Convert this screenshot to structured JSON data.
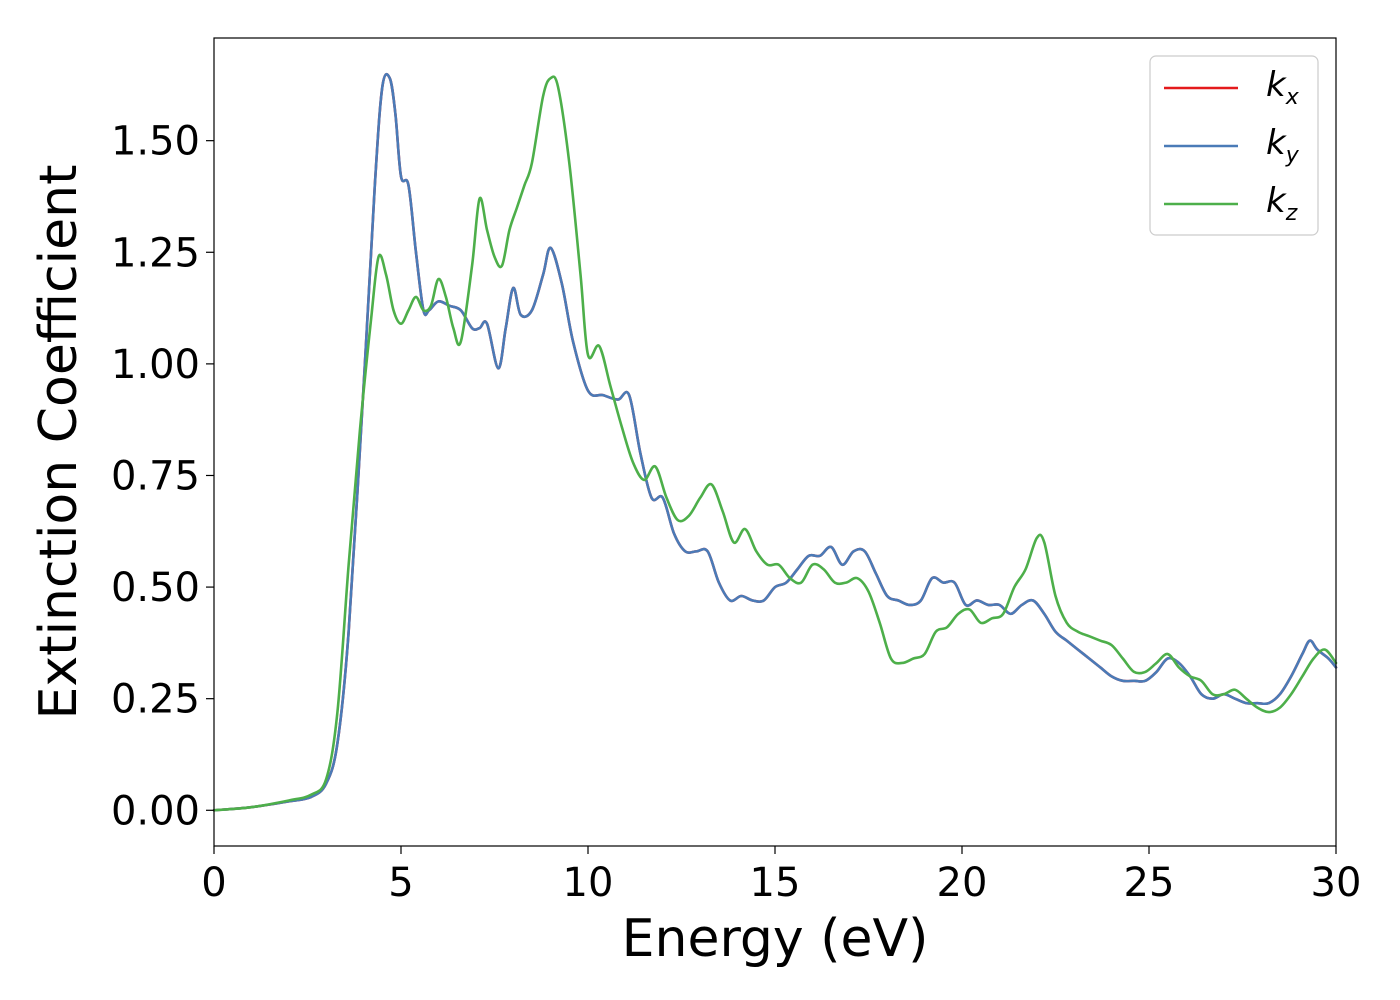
{
  "chart_data": {
    "type": "line",
    "title": "",
    "xlabel": "Energy (eV)",
    "ylabel": "Extinction Coefficient",
    "xlim": [
      0,
      30
    ],
    "ylim": [
      -0.08,
      1.73
    ],
    "xticks": [
      0,
      5,
      10,
      15,
      20,
      25,
      30
    ],
    "xtick_labels": [
      "0",
      "5",
      "10",
      "15",
      "20",
      "25",
      "30"
    ],
    "yticks": [
      0,
      0.25,
      0.5,
      0.75,
      1.0,
      1.25,
      1.5
    ],
    "ytick_labels": [
      "0.00",
      "0.25",
      "0.50",
      "0.75",
      "1.00",
      "1.25",
      "1.50"
    ],
    "grid": false,
    "legend_position": "top-right",
    "series": [
      {
        "name": "k",
        "subscript": "x",
        "color": "#e41a1c",
        "x": [
          0,
          1,
          2,
          2.6,
          3.0,
          3.3,
          3.6,
          4.0,
          4.3,
          4.5,
          4.7,
          4.85,
          5.0,
          5.2,
          5.4,
          5.6,
          5.75,
          6.0,
          6.3,
          6.6,
          6.9,
          7.1,
          7.3,
          7.6,
          7.8,
          8.0,
          8.2,
          8.5,
          8.8,
          9.0,
          9.3,
          9.6,
          10.0,
          10.4,
          10.8,
          11.1,
          11.4,
          11.7,
          12.0,
          12.3,
          12.6,
          12.9,
          13.2,
          13.5,
          13.8,
          14.1,
          14.4,
          14.7,
          15.0,
          15.3,
          15.6,
          15.9,
          16.2,
          16.5,
          16.8,
          17.1,
          17.4,
          17.7,
          18.0,
          18.3,
          18.6,
          18.9,
          19.2,
          19.5,
          19.8,
          20.1,
          20.4,
          20.7,
          21.0,
          21.3,
          21.6,
          21.9,
          22.2,
          22.5,
          22.8,
          23.1,
          23.4,
          23.7,
          24.0,
          24.3,
          24.6,
          24.9,
          25.2,
          25.5,
          25.8,
          26.1,
          26.4,
          26.7,
          27.0,
          27.3,
          27.6,
          27.9,
          28.2,
          28.5,
          28.8,
          29.1,
          29.3,
          29.5,
          29.8,
          30
        ],
        "y": [
          0.0,
          0.007,
          0.02,
          0.03,
          0.06,
          0.15,
          0.4,
          0.95,
          1.4,
          1.62,
          1.64,
          1.56,
          1.42,
          1.4,
          1.25,
          1.12,
          1.12,
          1.14,
          1.13,
          1.12,
          1.08,
          1.08,
          1.09,
          0.99,
          1.08,
          1.17,
          1.11,
          1.12,
          1.2,
          1.26,
          1.18,
          1.05,
          0.94,
          0.93,
          0.92,
          0.93,
          0.8,
          0.7,
          0.7,
          0.62,
          0.58,
          0.58,
          0.58,
          0.51,
          0.47,
          0.48,
          0.47,
          0.47,
          0.5,
          0.51,
          0.54,
          0.57,
          0.57,
          0.59,
          0.55,
          0.58,
          0.58,
          0.53,
          0.48,
          0.47,
          0.46,
          0.47,
          0.52,
          0.51,
          0.51,
          0.46,
          0.47,
          0.46,
          0.46,
          0.44,
          0.46,
          0.47,
          0.44,
          0.4,
          0.38,
          0.36,
          0.34,
          0.32,
          0.3,
          0.29,
          0.29,
          0.29,
          0.31,
          0.34,
          0.33,
          0.3,
          0.26,
          0.25,
          0.26,
          0.25,
          0.24,
          0.24,
          0.24,
          0.26,
          0.3,
          0.35,
          0.38,
          0.36,
          0.34,
          0.32
        ]
      },
      {
        "name": "k",
        "subscript": "y",
        "color": "#4a7bb7",
        "x": [
          0,
          1,
          2,
          2.6,
          3.0,
          3.3,
          3.6,
          4.0,
          4.3,
          4.5,
          4.7,
          4.85,
          5.0,
          5.2,
          5.4,
          5.6,
          5.75,
          6.0,
          6.3,
          6.6,
          6.9,
          7.1,
          7.3,
          7.6,
          7.8,
          8.0,
          8.2,
          8.5,
          8.8,
          9.0,
          9.3,
          9.6,
          10.0,
          10.4,
          10.8,
          11.1,
          11.4,
          11.7,
          12.0,
          12.3,
          12.6,
          12.9,
          13.2,
          13.5,
          13.8,
          14.1,
          14.4,
          14.7,
          15.0,
          15.3,
          15.6,
          15.9,
          16.2,
          16.5,
          16.8,
          17.1,
          17.4,
          17.7,
          18.0,
          18.3,
          18.6,
          18.9,
          19.2,
          19.5,
          19.8,
          20.1,
          20.4,
          20.7,
          21.0,
          21.3,
          21.6,
          21.9,
          22.2,
          22.5,
          22.8,
          23.1,
          23.4,
          23.7,
          24.0,
          24.3,
          24.6,
          24.9,
          25.2,
          25.5,
          25.8,
          26.1,
          26.4,
          26.7,
          27.0,
          27.3,
          27.6,
          27.9,
          28.2,
          28.5,
          28.8,
          29.1,
          29.3,
          29.5,
          29.8,
          30
        ],
        "y": [
          0.0,
          0.007,
          0.02,
          0.03,
          0.06,
          0.15,
          0.4,
          0.95,
          1.4,
          1.62,
          1.64,
          1.56,
          1.42,
          1.4,
          1.25,
          1.12,
          1.12,
          1.14,
          1.13,
          1.12,
          1.08,
          1.08,
          1.09,
          0.99,
          1.08,
          1.17,
          1.11,
          1.12,
          1.2,
          1.26,
          1.18,
          1.05,
          0.94,
          0.93,
          0.92,
          0.93,
          0.8,
          0.7,
          0.7,
          0.62,
          0.58,
          0.58,
          0.58,
          0.51,
          0.47,
          0.48,
          0.47,
          0.47,
          0.5,
          0.51,
          0.54,
          0.57,
          0.57,
          0.59,
          0.55,
          0.58,
          0.58,
          0.53,
          0.48,
          0.47,
          0.46,
          0.47,
          0.52,
          0.51,
          0.51,
          0.46,
          0.47,
          0.46,
          0.46,
          0.44,
          0.46,
          0.47,
          0.44,
          0.4,
          0.38,
          0.36,
          0.34,
          0.32,
          0.3,
          0.29,
          0.29,
          0.29,
          0.31,
          0.34,
          0.33,
          0.3,
          0.26,
          0.25,
          0.26,
          0.25,
          0.24,
          0.24,
          0.24,
          0.26,
          0.3,
          0.35,
          0.38,
          0.36,
          0.34,
          0.32
        ]
      },
      {
        "name": "k",
        "subscript": "z",
        "color": "#4daf4a",
        "x": [
          0,
          1,
          2,
          2.6,
          3.0,
          3.3,
          3.6,
          3.9,
          4.2,
          4.4,
          4.6,
          4.8,
          5.0,
          5.2,
          5.4,
          5.6,
          5.8,
          6.0,
          6.2,
          6.4,
          6.6,
          6.9,
          7.1,
          7.3,
          7.5,
          7.7,
          7.9,
          8.1,
          8.3,
          8.5,
          8.8,
          9.0,
          9.2,
          9.5,
          9.8,
          10.0,
          10.3,
          10.6,
          10.9,
          11.2,
          11.5,
          11.8,
          12.1,
          12.4,
          12.7,
          13.0,
          13.3,
          13.6,
          13.9,
          14.2,
          14.5,
          14.8,
          15.1,
          15.4,
          15.7,
          16.0,
          16.3,
          16.6,
          16.9,
          17.2,
          17.5,
          17.8,
          18.1,
          18.4,
          18.7,
          19.0,
          19.3,
          19.6,
          19.9,
          20.2,
          20.5,
          20.8,
          21.1,
          21.4,
          21.7,
          22.0,
          22.2,
          22.5,
          22.8,
          23.1,
          23.4,
          23.7,
          24.0,
          24.3,
          24.6,
          24.9,
          25.2,
          25.5,
          25.8,
          26.1,
          26.4,
          26.7,
          27.0,
          27.3,
          27.6,
          27.9,
          28.2,
          28.5,
          28.8,
          29.1,
          29.4,
          29.7,
          30
        ],
        "y": [
          0.0,
          0.007,
          0.022,
          0.035,
          0.07,
          0.22,
          0.55,
          0.85,
          1.1,
          1.24,
          1.2,
          1.12,
          1.09,
          1.12,
          1.15,
          1.12,
          1.13,
          1.19,
          1.15,
          1.08,
          1.05,
          1.22,
          1.37,
          1.3,
          1.24,
          1.22,
          1.3,
          1.35,
          1.4,
          1.45,
          1.6,
          1.64,
          1.62,
          1.45,
          1.2,
          1.02,
          1.04,
          0.95,
          0.86,
          0.78,
          0.74,
          0.77,
          0.7,
          0.65,
          0.66,
          0.7,
          0.73,
          0.67,
          0.6,
          0.63,
          0.58,
          0.55,
          0.55,
          0.52,
          0.51,
          0.55,
          0.54,
          0.51,
          0.51,
          0.52,
          0.49,
          0.42,
          0.34,
          0.33,
          0.34,
          0.35,
          0.4,
          0.41,
          0.44,
          0.45,
          0.42,
          0.43,
          0.44,
          0.5,
          0.54,
          0.61,
          0.6,
          0.48,
          0.42,
          0.4,
          0.39,
          0.38,
          0.37,
          0.34,
          0.31,
          0.31,
          0.33,
          0.35,
          0.32,
          0.3,
          0.29,
          0.26,
          0.26,
          0.27,
          0.25,
          0.23,
          0.22,
          0.23,
          0.26,
          0.3,
          0.34,
          0.36,
          0.33
        ]
      }
    ]
  }
}
